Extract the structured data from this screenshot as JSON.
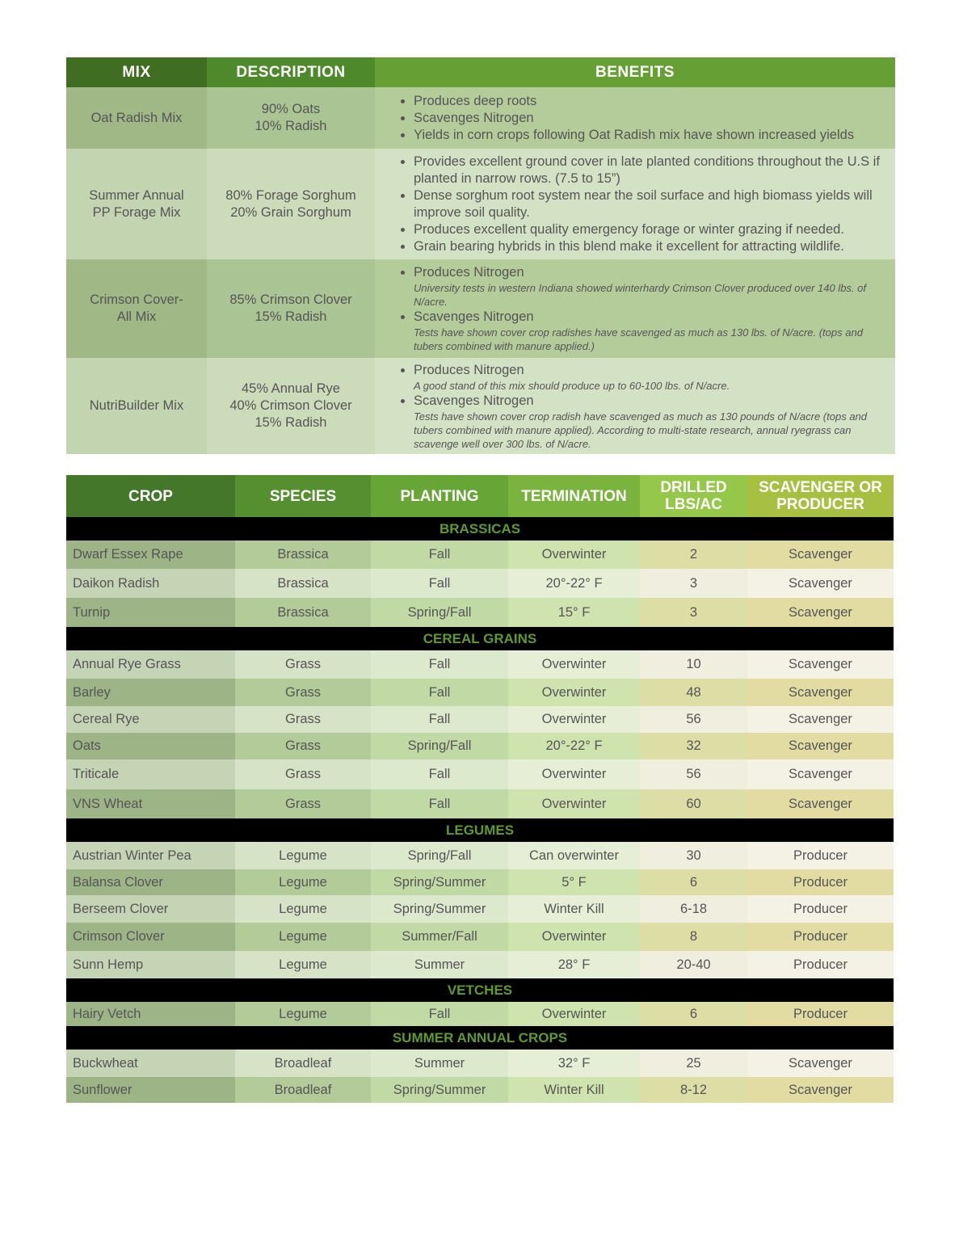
{
  "colors": {
    "header_dark": "#3f6e22",
    "header_mid": "#4e8a2c",
    "header_light": "#66a035",
    "section_text": "#5f9a2e"
  },
  "mix_table": {
    "headers": [
      "MIX",
      "DESCRIPTION",
      "BENEFITS"
    ],
    "rows": [
      {
        "mix": "Oat Radish Mix",
        "description": [
          "90% Oats",
          "10% Radish"
        ],
        "benefits": [
          {
            "text": "Produces deep roots"
          },
          {
            "text": "Scavenges Nitrogen"
          },
          {
            "text": "Yields in corn crops following Oat Radish mix have shown increased yields"
          }
        ]
      },
      {
        "mix": "Summer Annual PP Forage Mix",
        "description": [
          "80% Forage Sorghum",
          "20% Grain Sorghum"
        ],
        "benefits": [
          {
            "text": "Provides excellent ground cover in late planted conditions throughout the U.S if planted in narrow rows. (7.5 to 15”)"
          },
          {
            "text": "Dense sorghum root system near the soil surface and high biomass yields will improve soil quality."
          },
          {
            "text": "Produces excellent quality emergency forage or winter grazing if needed."
          },
          {
            "text": "Grain bearing hybrids in this blend make it excellent for attracting wildlife."
          }
        ]
      },
      {
        "mix": "Crimson Cover-All Mix",
        "description": [
          "85% Crimson Clover",
          "15% Radish"
        ],
        "benefits": [
          {
            "text": "Produces Nitrogen",
            "note": "University tests in western Indiana showed winterhardy Crimson Clover produced over 140 lbs. of N/acre."
          },
          {
            "text": "Scavenges Nitrogen",
            "note": "Tests have shown cover crop radishes have scavenged as much as 130 lbs. of N/acre. (tops and tubers combined with manure applied.)"
          }
        ]
      },
      {
        "mix": "NutriBuilder Mix",
        "description": [
          "45% Annual Rye",
          "40% Crimson Clover",
          "15% Radish"
        ],
        "benefits": [
          {
            "text": "Produces Nitrogen",
            "note": "A good stand of this mix should produce up to 60-100 lbs. of N/acre."
          },
          {
            "text": "Scavenges Nitrogen",
            "note": "Tests have shown cover crop radish have scavenged as much as 130 pounds of N/acre (tops and tubers combined with manure applied). According to multi-state research, annual ryegrass can scavenge well over 300 lbs. of N/acre."
          }
        ]
      }
    ]
  },
  "crop_table": {
    "headers": [
      "CROP",
      "SPECIES",
      "PLANTING",
      "TERMINATION",
      "DRILLED LBS/AC",
      "SCAVENGER OR PRODUCER"
    ],
    "header_colors": [
      "#44772a",
      "#568f30",
      "#67a537",
      "#7ab43e",
      "#95c84a",
      "#a8c042"
    ],
    "sections": [
      {
        "name": "BRASSICAS",
        "rows": [
          [
            "Dwarf Essex Rape",
            "Brassica",
            "Fall",
            "Overwinter",
            "2",
            "Scavenger"
          ],
          [
            "Daikon Radish",
            "Brassica",
            "Fall",
            "20°-22° F",
            "3",
            "Scavenger"
          ],
          [
            "Turnip",
            "Brassica",
            "Spring/Fall",
            "15° F",
            "3",
            "Scavenger"
          ]
        ]
      },
      {
        "name": "CEREAL GRAINS",
        "rows": [
          [
            "Annual Rye Grass",
            "Grass",
            "Fall",
            "Overwinter",
            "10",
            "Scavenger"
          ],
          [
            "Barley",
            "Grass",
            "Fall",
            "Overwinter",
            "48",
            "Scavenger"
          ],
          [
            "Cereal Rye",
            "Grass",
            "Fall",
            "Overwinter",
            "56",
            "Scavenger"
          ],
          [
            "Oats",
            "Grass",
            "Spring/Fall",
            "20°-22° F",
            "32",
            "Scavenger"
          ],
          [
            "Triticale",
            "Grass",
            "Fall",
            "Overwinter",
            "56",
            "Scavenger"
          ],
          [
            "VNS Wheat",
            "Grass",
            "Fall",
            "Overwinter",
            "60",
            "Scavenger"
          ]
        ]
      },
      {
        "name": "LEGUMES",
        "rows": [
          [
            "Austrian Winter Pea",
            "Legume",
            "Spring/Fall",
            "Can overwinter",
            "30",
            "Producer"
          ],
          [
            "Balansa Clover",
            "Legume",
            "Spring/Summer",
            "5° F",
            "6",
            "Producer"
          ],
          [
            "Berseem Clover",
            "Legume",
            "Spring/Summer",
            "Winter Kill",
            "6-18",
            "Producer"
          ],
          [
            "Crimson Clover",
            "Legume",
            "Summer/Fall",
            "Overwinter",
            "8",
            "Producer"
          ],
          [
            "Sunn Hemp",
            "Legume",
            "Summer",
            "28° F",
            "20-40",
            "Producer"
          ]
        ]
      },
      {
        "name": "VETCHES",
        "rows": [
          [
            "Hairy Vetch",
            "Legume",
            "Fall",
            "Overwinter",
            "6",
            "Producer"
          ]
        ]
      },
      {
        "name": "SUMMER ANNUAL CROPS",
        "rows": [
          [
            "Buckwheat",
            "Broadleaf",
            "Summer",
            "32° F",
            "25",
            "Scavenger"
          ],
          [
            "Sunflower",
            "Broadleaf",
            "Spring/Summer",
            "Winter Kill",
            "8-12",
            "Scavenger"
          ]
        ]
      }
    ]
  }
}
